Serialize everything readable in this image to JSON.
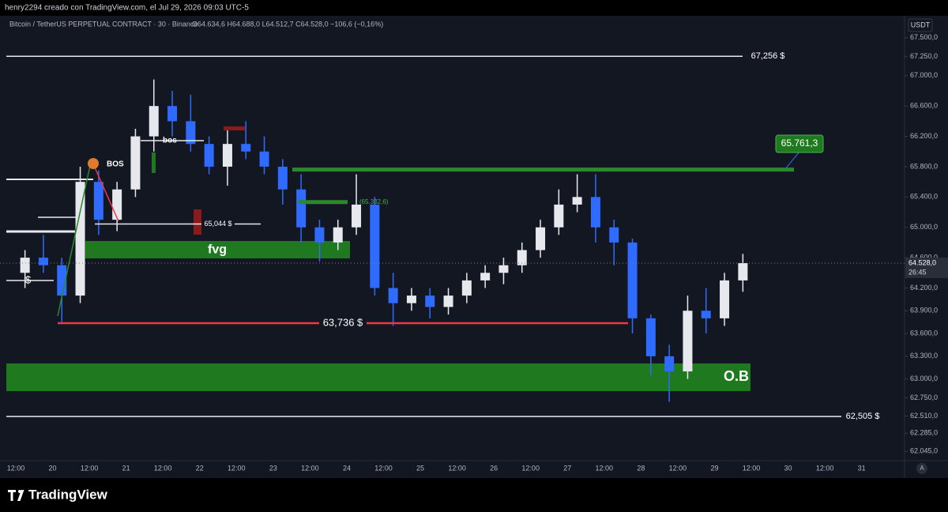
{
  "chart_data": {
    "type": "candlestick",
    "header": "henry2294 creado con TradingView.com, el Jul 29, 2026 09:03 UTC-5",
    "title": "Bitcoin / TetherUS PERPETUAL CONTRACT · 30 · Binance",
    "ohlc_legend": "O64.634,6 H64.688,0 L64.512,7 C64.528,0 −106,6 (−0,16%)",
    "currency": "USDT",
    "last_price": {
      "value": 64528,
      "label": "64.528,0"
    },
    "countdown": "26:45",
    "brand": "TradingView",
    "auto_button": "A",
    "x_labels": [
      "12:00",
      "20",
      "12:00",
      "21",
      "12:00",
      "22",
      "12:00",
      "23",
      "12:00",
      "24",
      "12:00",
      "25",
      "12:00",
      "26",
      "12:00",
      "27",
      "12:00",
      "28",
      "12:00",
      "29",
      "12:00",
      "30",
      "12:00",
      "31"
    ],
    "open": [
      64400,
      64600,
      64500,
      64100,
      65600,
      65100,
      65500,
      66200,
      66600,
      66400,
      66100,
      65800,
      66100,
      66000,
      65800,
      65500,
      65000,
      64800,
      65000,
      65300,
      64200,
      64000,
      64100,
      63950,
      64100,
      64300,
      64400,
      64500,
      64700,
      65000,
      65300,
      65400,
      65000,
      64800,
      63800,
      63300,
      63100,
      63900,
      63800,
      64300
    ],
    "high": [
      64700,
      64900,
      64600,
      65800,
      65750,
      65600,
      66300,
      66950,
      66800,
      66750,
      66200,
      66300,
      66400,
      66200,
      65900,
      65700,
      65100,
      65100,
      65700,
      65400,
      64400,
      64200,
      64200,
      64200,
      64400,
      64500,
      64600,
      64800,
      65100,
      65500,
      65700,
      65700,
      65100,
      64850,
      63850,
      63450,
      64100,
      64200,
      64400,
      64650
    ],
    "low": [
      64200,
      64400,
      63750,
      64000,
      64900,
      64950,
      65400,
      66000,
      66200,
      66000,
      65700,
      65550,
      65900,
      65700,
      65300,
      64800,
      64550,
      64700,
      64900,
      64100,
      63700,
      63900,
      63800,
      63850,
      64000,
      64200,
      64250,
      64400,
      64600,
      64900,
      65200,
      64800,
      64500,
      63600,
      63050,
      62700,
      63000,
      63600,
      63700,
      64150
    ],
    "close": [
      64600,
      64500,
      64100,
      65600,
      65100,
      65500,
      66200,
      66600,
      66400,
      66100,
      65800,
      66100,
      66000,
      65800,
      65500,
      65000,
      64800,
      65000,
      65300,
      64200,
      64000,
      64100,
      63950,
      64100,
      64300,
      64400,
      64500,
      64700,
      65000,
      65300,
      65400,
      65000,
      64800,
      63800,
      63300,
      63100,
      63900,
      63800,
      64300,
      64528
    ],
    "up_color": "#e6e8ee",
    "down_color": "#2f6bff",
    "ylim": [
      61850,
      67790
    ],
    "yticks": [
      {
        "value": 67500,
        "label": "67.500,0"
      },
      {
        "value": 67250,
        "label": "67.250,0"
      },
      {
        "value": 67000,
        "label": "67.000,0"
      },
      {
        "value": 66600,
        "label": "66.600,0"
      },
      {
        "value": 66200,
        "label": "66.200,0"
      },
      {
        "value": 65800,
        "label": "65.800,0"
      },
      {
        "value": 65400,
        "label": "65.400,0"
      },
      {
        "value": 65000,
        "label": "65.000,0"
      },
      {
        "value": 64600,
        "label": "64.600,0"
      },
      {
        "value": 64200,
        "label": "64.200,0"
      },
      {
        "value": 63900,
        "label": "63.900,0"
      },
      {
        "value": 63600,
        "label": "63.600,0"
      },
      {
        "value": 63300,
        "label": "63.300,0"
      },
      {
        "value": 63000,
        "label": "63.000,0"
      },
      {
        "value": 62750,
        "label": "62.750,0"
      },
      {
        "value": 62510,
        "label": "62.510,0"
      },
      {
        "value": 62285,
        "label": "62.285,0"
      },
      {
        "value": 62045,
        "label": "62.045,0"
      }
    ],
    "levels": [
      {
        "value": 67256,
        "label": "67,256 $",
        "color": "#e6e8ee"
      },
      {
        "value": 62505,
        "label": "62,505 $",
        "color": "#e6e8ee"
      },
      {
        "value": 63736,
        "label": "63,736 $",
        "color": "#f23645"
      },
      {
        "value": 65044,
        "label": "65,044 $",
        "color": "#e6e8ee"
      },
      {
        "value": 65761.3,
        "label": "65.761,3",
        "color": "#2a8a2a"
      },
      {
        "value": 65332.6,
        "label": "(65.332,6)",
        "color": "#2a8a2a"
      }
    ],
    "zones": [
      {
        "label": "fvg",
        "from": 64590,
        "to": 64820,
        "color": "#1f7a1f"
      },
      {
        "label": "O.B",
        "from": 62840,
        "to": 63205,
        "color": "#1f7a1f"
      }
    ],
    "annotations": [
      "BOS",
      "bos",
      "$"
    ]
  }
}
